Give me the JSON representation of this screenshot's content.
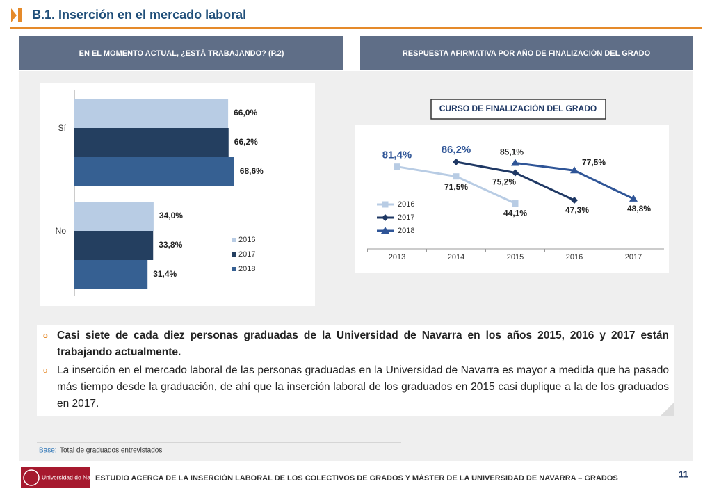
{
  "header": {
    "title": "B.1. Inserción en el mercado laboral"
  },
  "panels": [
    "EN EL MOMENTO ACTUAL, ¿ESTÁ TRABAJANDO? (P.2)",
    "RESPUESTA AFIRMATIVA POR AÑO DE FINALIZACIÓN DEL GRADO"
  ],
  "chart_data": [
    {
      "type": "hbar",
      "categories": [
        "Sí",
        "No"
      ],
      "series": [
        {
          "name": "2016",
          "color": "#b8cce4",
          "values": [
            66.0,
            34.0
          ],
          "value_labels": [
            "66,0%",
            "34,0%"
          ]
        },
        {
          "name": "2017",
          "color": "#243f60",
          "values": [
            66.2,
            33.8
          ],
          "value_labels": [
            "66,2%",
            "33,8%"
          ]
        },
        {
          "name": "2018",
          "color": "#366092",
          "values": [
            68.6,
            31.4
          ],
          "value_labels": [
            "68,6%",
            "31,4%"
          ]
        }
      ],
      "xlim": [
        0,
        100
      ]
    },
    {
      "type": "line",
      "subtitle": "CURSO DE FINALIZACIÓN DEL GRADO",
      "categories": [
        "2013",
        "2014",
        "2015",
        "2016",
        "2017"
      ],
      "series": [
        {
          "name": "2016",
          "color": "#b8cce4",
          "marker": "square",
          "values": [
            81.4,
            71.5,
            44.1,
            null,
            null
          ],
          "value_labels": [
            "81,4%",
            "71,5%",
            "44,1%",
            null,
            null
          ]
        },
        {
          "name": "2017",
          "color": "#1f3864",
          "marker": "diamond",
          "values": [
            null,
            86.2,
            75.2,
            47.3,
            null
          ],
          "value_labels": [
            null,
            "86,2%",
            "75,2%",
            "47,3%",
            null
          ]
        },
        {
          "name": "2018",
          "color": "#2f5597",
          "marker": "triangle",
          "values": [
            null,
            null,
            85.1,
            77.5,
            48.8
          ],
          "value_labels": [
            null,
            null,
            "85,1%",
            "77,5%",
            "48,8%"
          ]
        }
      ],
      "ylim": [
        0,
        120
      ]
    }
  ],
  "bullets": [
    "Casi siete de cada diez personas graduadas de la Universidad de Navarra en los años 2015, 2016 y 2017 están trabajando actualmente.",
    "La inserción en el mercado laboral de las personas graduadas en la Universidad de Navarra es mayor a medida que ha pasado más tiempo desde la graduación, de ahí que la inserción laboral de los graduados en 2015 casi duplique a la de los graduados en 2017."
  ],
  "base": {
    "label": "Base:",
    "text": "Total de graduados entrevistados"
  },
  "footer": {
    "logo": "Universidad de Navarra",
    "text": "ESTUDIO ACERCA DE LA INSERCIÓN LABORAL DE LOS COLECTIVOS DE GRADOS Y MÁSTER DE LA UNIVERSIDAD DE NAVARRA – GRADOS",
    "page": "11"
  }
}
